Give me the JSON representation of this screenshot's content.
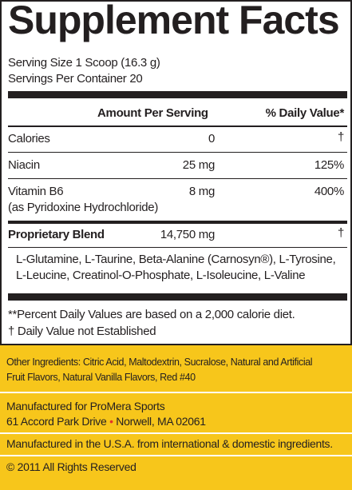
{
  "header": {
    "title": "Supplement Facts",
    "serving_size": "Serving Size 1 Scoop (16.3 g)",
    "servings_per_container": "Servings Per Container 20"
  },
  "table": {
    "columns": [
      "Amount Per Serving",
      "% Daily Value*"
    ],
    "rows": [
      [
        "Calories",
        "0",
        "†"
      ],
      [
        "Niacin",
        "25 mg",
        "125%"
      ],
      [
        "Vitamin B6",
        "8 mg",
        "400%",
        "(as Pyridoxine Hydrochloride)"
      ],
      [
        "Proprietary Blend",
        "14,750 mg",
        "†"
      ]
    ]
  },
  "blend": {
    "lines": [
      "L-Glutamine, L-Taurine, Beta-Alanine (Carnosyn®), L-Tyrosine,",
      "L-Leucine, Creatinol-O-Phosphate, L-Isoleucine, L-Valine"
    ]
  },
  "footnotes": [
    "**Percent Daily Values are based on a 2,000 calorie diet.",
    "† Daily Value not Established"
  ],
  "other_ingredients": [
    "Other Ingredients: Citric Acid, Maltodextrin, Sucralose, Natural and Artificial",
    "Fruit Flavors, Natural Vanilla Flavors, Red #40"
  ],
  "manufacturer": {
    "name": "Manufactured for ProMera Sports",
    "street": "61 Accord Park Drive",
    "separator": "•",
    "city": "Norwell, MA 02061"
  },
  "origin": "Manufactured in the U.S.A. from international & domestic ingredients.",
  "copyright": "© 2011 All Rights Reserved"
}
